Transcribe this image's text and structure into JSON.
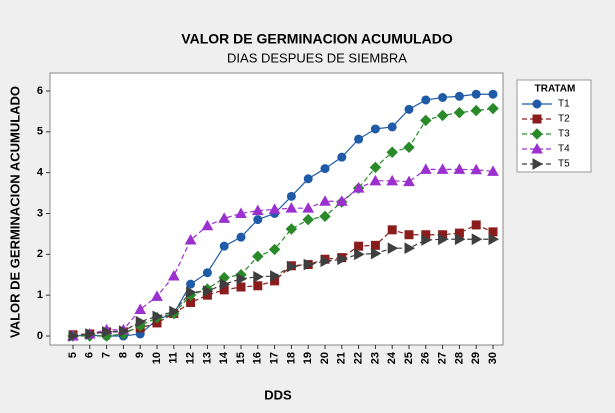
{
  "chart_data": {
    "type": "line",
    "title": "VALOR DE GERMINACION ACUMULADO",
    "subtitle": "DIAS DESPUES DE SIEMBRA",
    "x_label": "DDS",
    "y_label": "VALOR DE GERMINACION ACUMULADO",
    "legend_title": "TRATAM",
    "legend_position": "right",
    "grid": false,
    "categories": [
      5,
      6,
      7,
      8,
      9,
      10,
      11,
      12,
      13,
      14,
      15,
      16,
      17,
      18,
      19,
      20,
      21,
      22,
      23,
      24,
      25,
      26,
      27,
      28,
      29,
      30
    ],
    "ylim": [
      -0.22,
      6.44
    ],
    "yticks": [
      0,
      1,
      2,
      3,
      4,
      5,
      6
    ],
    "series": [
      {
        "name": "T1",
        "color": "#1f5ba6",
        "marker": "circle",
        "dash": false,
        "values": [
          0,
          0.02,
          0,
          0,
          0.05,
          0.4,
          0.55,
          1.27,
          1.55,
          2.2,
          2.42,
          2.85,
          3.0,
          3.42,
          3.85,
          4.1,
          4.38,
          4.82,
          5.07,
          5.12,
          5.55,
          5.78,
          5.84,
          5.87,
          5.92,
          5.92
        ]
      },
      {
        "name": "T2",
        "color": "#8b1c1c",
        "marker": "square",
        "dash": true,
        "values": [
          0.03,
          0.05,
          0.1,
          0.1,
          0.2,
          0.32,
          0.55,
          0.82,
          1.0,
          1.13,
          1.2,
          1.23,
          1.35,
          1.72,
          1.75,
          1.88,
          1.92,
          2.2,
          2.22,
          2.6,
          2.48,
          2.48,
          2.48,
          2.52,
          2.72,
          2.55
        ]
      },
      {
        "name": "T3",
        "color": "#2a8a2a",
        "marker": "diamond",
        "dash": true,
        "values": [
          0,
          0,
          0,
          0.05,
          0.25,
          0.45,
          0.55,
          1.0,
          1.15,
          1.43,
          1.5,
          1.95,
          2.12,
          2.62,
          2.85,
          2.93,
          3.28,
          3.62,
          4.13,
          4.5,
          4.62,
          5.28,
          5.4,
          5.47,
          5.52,
          5.57
        ]
      },
      {
        "name": "T4",
        "color": "#9b30cf",
        "marker": "triangle-up",
        "dash": true,
        "values": [
          0,
          0.05,
          0.15,
          0.15,
          0.65,
          0.97,
          1.47,
          2.35,
          2.7,
          2.88,
          3.0,
          3.07,
          3.1,
          3.13,
          3.13,
          3.3,
          3.3,
          3.62,
          3.8,
          3.8,
          3.78,
          4.08,
          4.08,
          4.08,
          4.07,
          4.03
        ]
      },
      {
        "name": "T5",
        "color": "#3f3f3f",
        "marker": "triangle-right",
        "dash": true,
        "values": [
          0,
          0.05,
          0.1,
          0.12,
          0.35,
          0.48,
          0.6,
          1.07,
          1.1,
          1.27,
          1.4,
          1.45,
          1.47,
          1.7,
          1.75,
          1.83,
          1.88,
          2.0,
          2.02,
          2.15,
          2.15,
          2.35,
          2.37,
          2.37,
          2.37,
          2.37
        ]
      }
    ]
  }
}
